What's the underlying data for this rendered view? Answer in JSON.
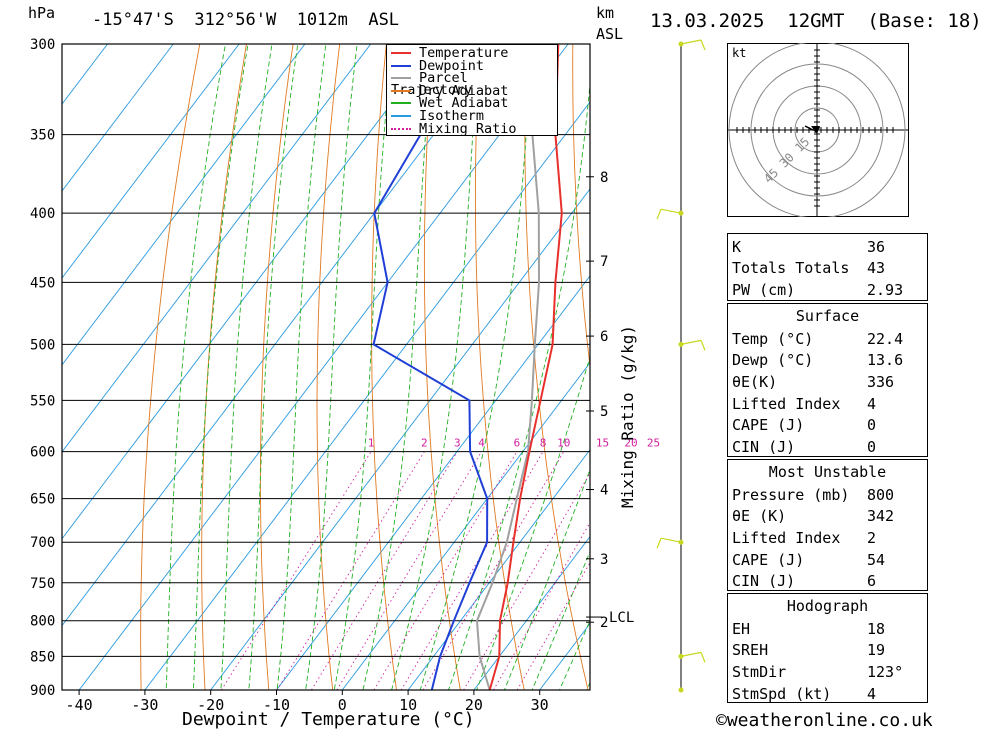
{
  "header": {
    "hpa_label": "hPa",
    "location": "-15°47'S  312°56'W  1012m  ASL",
    "km_label": "km",
    "asl_label": "ASL",
    "datetime": "13.03.2025  12GMT  (Base: 18)"
  },
  "chart_data": {
    "type": "skew-t",
    "xlabel": "Dewpoint / Temperature (°C)",
    "ylabel_left": "hPa",
    "ylabel_right": "Mixing Ratio (g/kg)",
    "x_ticks": [
      -40,
      -30,
      -20,
      -10,
      0,
      10,
      20,
      30
    ],
    "p_ticks": [
      300,
      350,
      400,
      450,
      500,
      550,
      600,
      650,
      700,
      750,
      800,
      850,
      900
    ],
    "km_ticks": [
      {
        "label": "8",
        "p": 376
      },
      {
        "label": "7",
        "p": 434
      },
      {
        "label": "6",
        "p": 493
      },
      {
        "label": "5",
        "p": 560
      },
      {
        "label": "4",
        "p": 640
      },
      {
        "label": "3",
        "p": 720
      },
      {
        "label": "2",
        "p": 802
      }
    ],
    "lcl": {
      "label": "LCL",
      "p": 795
    },
    "mixing_ratio_labels": [
      "1",
      "2",
      "3",
      "4",
      "6",
      "8",
      "10",
      "15",
      "20",
      "25"
    ],
    "legend": [
      "Temperature",
      "Dewpoint",
      "Parcel Trajectory",
      "Dry Adiabat",
      "Wet Adiabat",
      "Isotherm",
      "Mixing Ratio"
    ],
    "colors": {
      "temperature": "#e8302c",
      "dewpoint": "#1f3fd6",
      "parcel": "#a0a0a0",
      "dry_adiabat": "#e07a20",
      "wet_adiabat": "#22b022",
      "isotherm": "#2a9ae0",
      "mixing_ratio": "#d020a0",
      "wind": "#c8d820"
    },
    "temperature_profile": [
      {
        "p": 900,
        "t": 22.4
      },
      {
        "p": 850,
        "t": 20.0
      },
      {
        "p": 800,
        "t": 16.0
      },
      {
        "p": 750,
        "t": 12.8
      },
      {
        "p": 700,
        "t": 9.0
      },
      {
        "p": 650,
        "t": 5.0
      },
      {
        "p": 600,
        "t": 1.0
      },
      {
        "p": 550,
        "t": -3.2
      },
      {
        "p": 500,
        "t": -7.8
      },
      {
        "p": 450,
        "t": -14.5
      },
      {
        "p": 400,
        "t": -21.5
      },
      {
        "p": 350,
        "t": -31.5
      },
      {
        "p": 300,
        "t": -41.5
      }
    ],
    "dewpoint_profile": [
      {
        "p": 900,
        "t": 13.6
      },
      {
        "p": 850,
        "t": 11.0
      },
      {
        "p": 800,
        "t": 9.0
      },
      {
        "p": 750,
        "t": 7.0
      },
      {
        "p": 700,
        "t": 5.0
      },
      {
        "p": 650,
        "t": 0.0
      },
      {
        "p": 600,
        "t": -8.0
      },
      {
        "p": 550,
        "t": -14.0
      },
      {
        "p": 500,
        "t": -35.0
      },
      {
        "p": 450,
        "t": -40.0
      },
      {
        "p": 400,
        "t": -50.0
      },
      {
        "p": 350,
        "t": -52.0
      },
      {
        "p": 300,
        "t": -62.0
      }
    ],
    "parcel_profile": [
      {
        "p": 900,
        "t": 22.4
      },
      {
        "p": 850,
        "t": 17.0
      },
      {
        "p": 800,
        "t": 12.5
      },
      {
        "p": 750,
        "t": 10.5
      },
      {
        "p": 700,
        "t": 8.0
      },
      {
        "p": 650,
        "t": 4.5
      },
      {
        "p": 600,
        "t": 0.8
      },
      {
        "p": 550,
        "t": -4.5
      },
      {
        "p": 500,
        "t": -10.5
      },
      {
        "p": 450,
        "t": -17.0
      },
      {
        "p": 400,
        "t": -25.0
      },
      {
        "p": 350,
        "t": -35.0
      },
      {
        "p": 300,
        "t": -47.0
      }
    ],
    "wind_barb_levels": [
      300,
      400,
      500,
      700,
      850,
      900
    ]
  },
  "hodograph": {
    "unit": "kt",
    "rings": [
      "15",
      "30",
      "45"
    ]
  },
  "indices": [
    {
      "label": "K",
      "value": "36"
    },
    {
      "label": "Totals Totals",
      "value": "43"
    },
    {
      "label": "PW (cm)",
      "value": "2.93"
    }
  ],
  "surface": {
    "title": "Surface",
    "rows": [
      {
        "label": "Temp (°C)",
        "value": "22.4"
      },
      {
        "label": "Dewp (°C)",
        "value": "13.6"
      },
      {
        "label": "θE(K)",
        "value": "336"
      },
      {
        "label": "Lifted Index",
        "value": "4"
      },
      {
        "label": "CAPE (J)",
        "value": "0"
      },
      {
        "label": "CIN (J)",
        "value": "0"
      }
    ]
  },
  "most_unstable": {
    "title": "Most Unstable",
    "rows": [
      {
        "label": "Pressure (mb)",
        "value": "800"
      },
      {
        "label": "θE (K)",
        "value": "342"
      },
      {
        "label": "Lifted Index",
        "value": "2"
      },
      {
        "label": "CAPE (J)",
        "value": "54"
      },
      {
        "label": "CIN (J)",
        "value": "6"
      }
    ]
  },
  "hodograph_table": {
    "title": "Hodograph",
    "rows": [
      {
        "label": "EH",
        "value": "18"
      },
      {
        "label": "SREH",
        "value": "19"
      },
      {
        "label": "StmDir",
        "value": "123°"
      },
      {
        "label": "StmSpd (kt)",
        "value": "4"
      }
    ]
  },
  "footer": {
    "copyright": "©weatheronline.co.uk"
  }
}
